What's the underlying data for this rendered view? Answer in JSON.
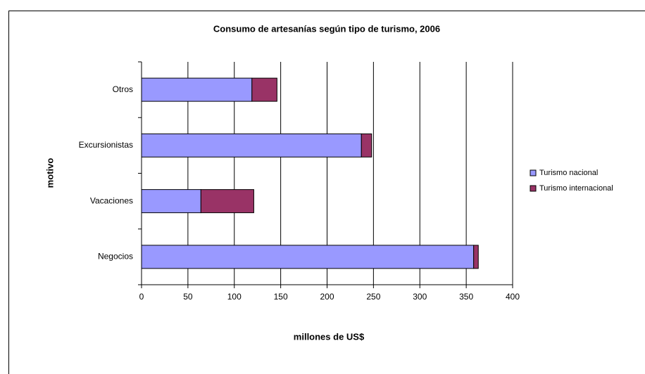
{
  "chart_data": {
    "type": "stacked-bar-horizontal",
    "title": "Consumo de artesanías según tipo de turismo, 2006",
    "xlabel": "millones de US$",
    "ylabel": "motivo",
    "categories": [
      "Negocios",
      "Vacaciones",
      "Excursionistas",
      "Otros"
    ],
    "series": [
      {
        "name": "Turismo nacional",
        "color": "#9999ff",
        "values": [
          358,
          64,
          237,
          119
        ]
      },
      {
        "name": "Turismo internacional",
        "color": "#993366",
        "values": [
          5,
          57,
          11,
          27
        ]
      }
    ],
    "xlim": [
      0,
      400
    ],
    "xticks": [
      0,
      50,
      100,
      150,
      200,
      250,
      300,
      350,
      400
    ],
    "grid": true,
    "legend": "right"
  }
}
